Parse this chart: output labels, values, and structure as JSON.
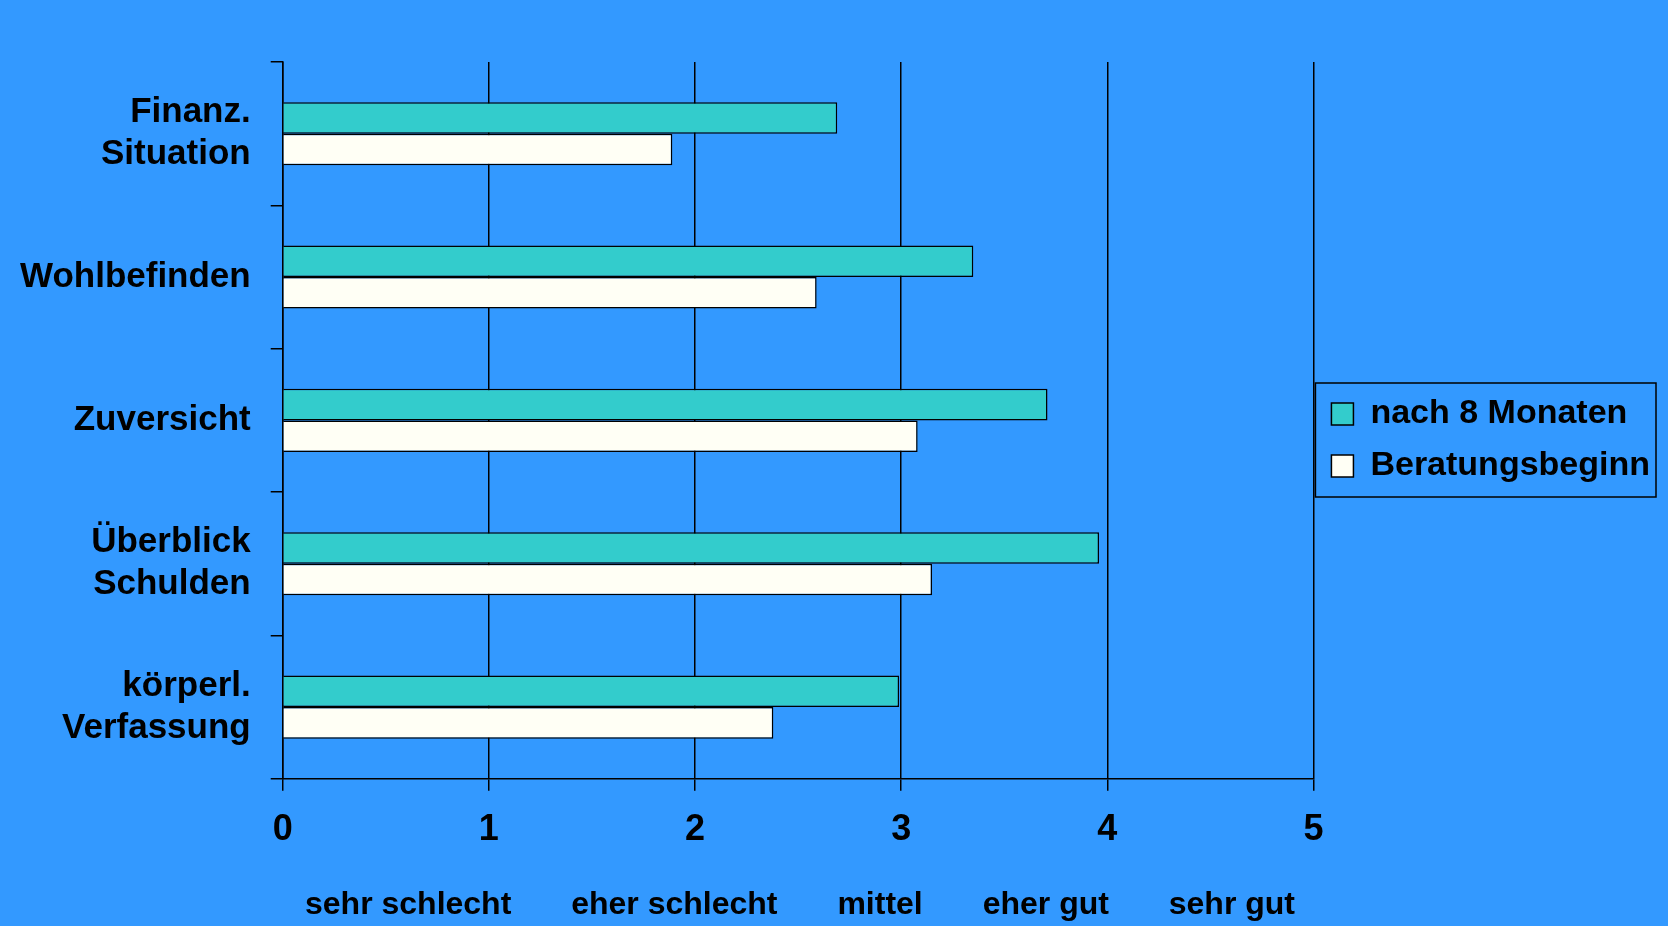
{
  "chart_data": {
    "type": "bar",
    "orientation": "horizontal",
    "categories": [
      "Finanz. Situation",
      "Wohlbefinden",
      "Zuversicht",
      "Überblick Schulden",
      "körperl. Verfassung"
    ],
    "series": [
      {
        "name": "nach 8 Monaten",
        "color": "#33cccc",
        "values": [
          2.69,
          3.35,
          3.71,
          3.96,
          2.99
        ]
      },
      {
        "name": "Beratungsbeginn",
        "color": "#fffff5",
        "values": [
          1.89,
          2.59,
          3.08,
          3.15,
          2.38
        ]
      }
    ],
    "xlim": [
      0,
      5
    ],
    "xticks": [
      0,
      1,
      2,
      3,
      4,
      5
    ],
    "grid": "x",
    "legend": "right",
    "annotations": [
      "sehr schlecht",
      "eher schlecht",
      "mittel",
      "eher gut",
      "sehr gut"
    ]
  }
}
